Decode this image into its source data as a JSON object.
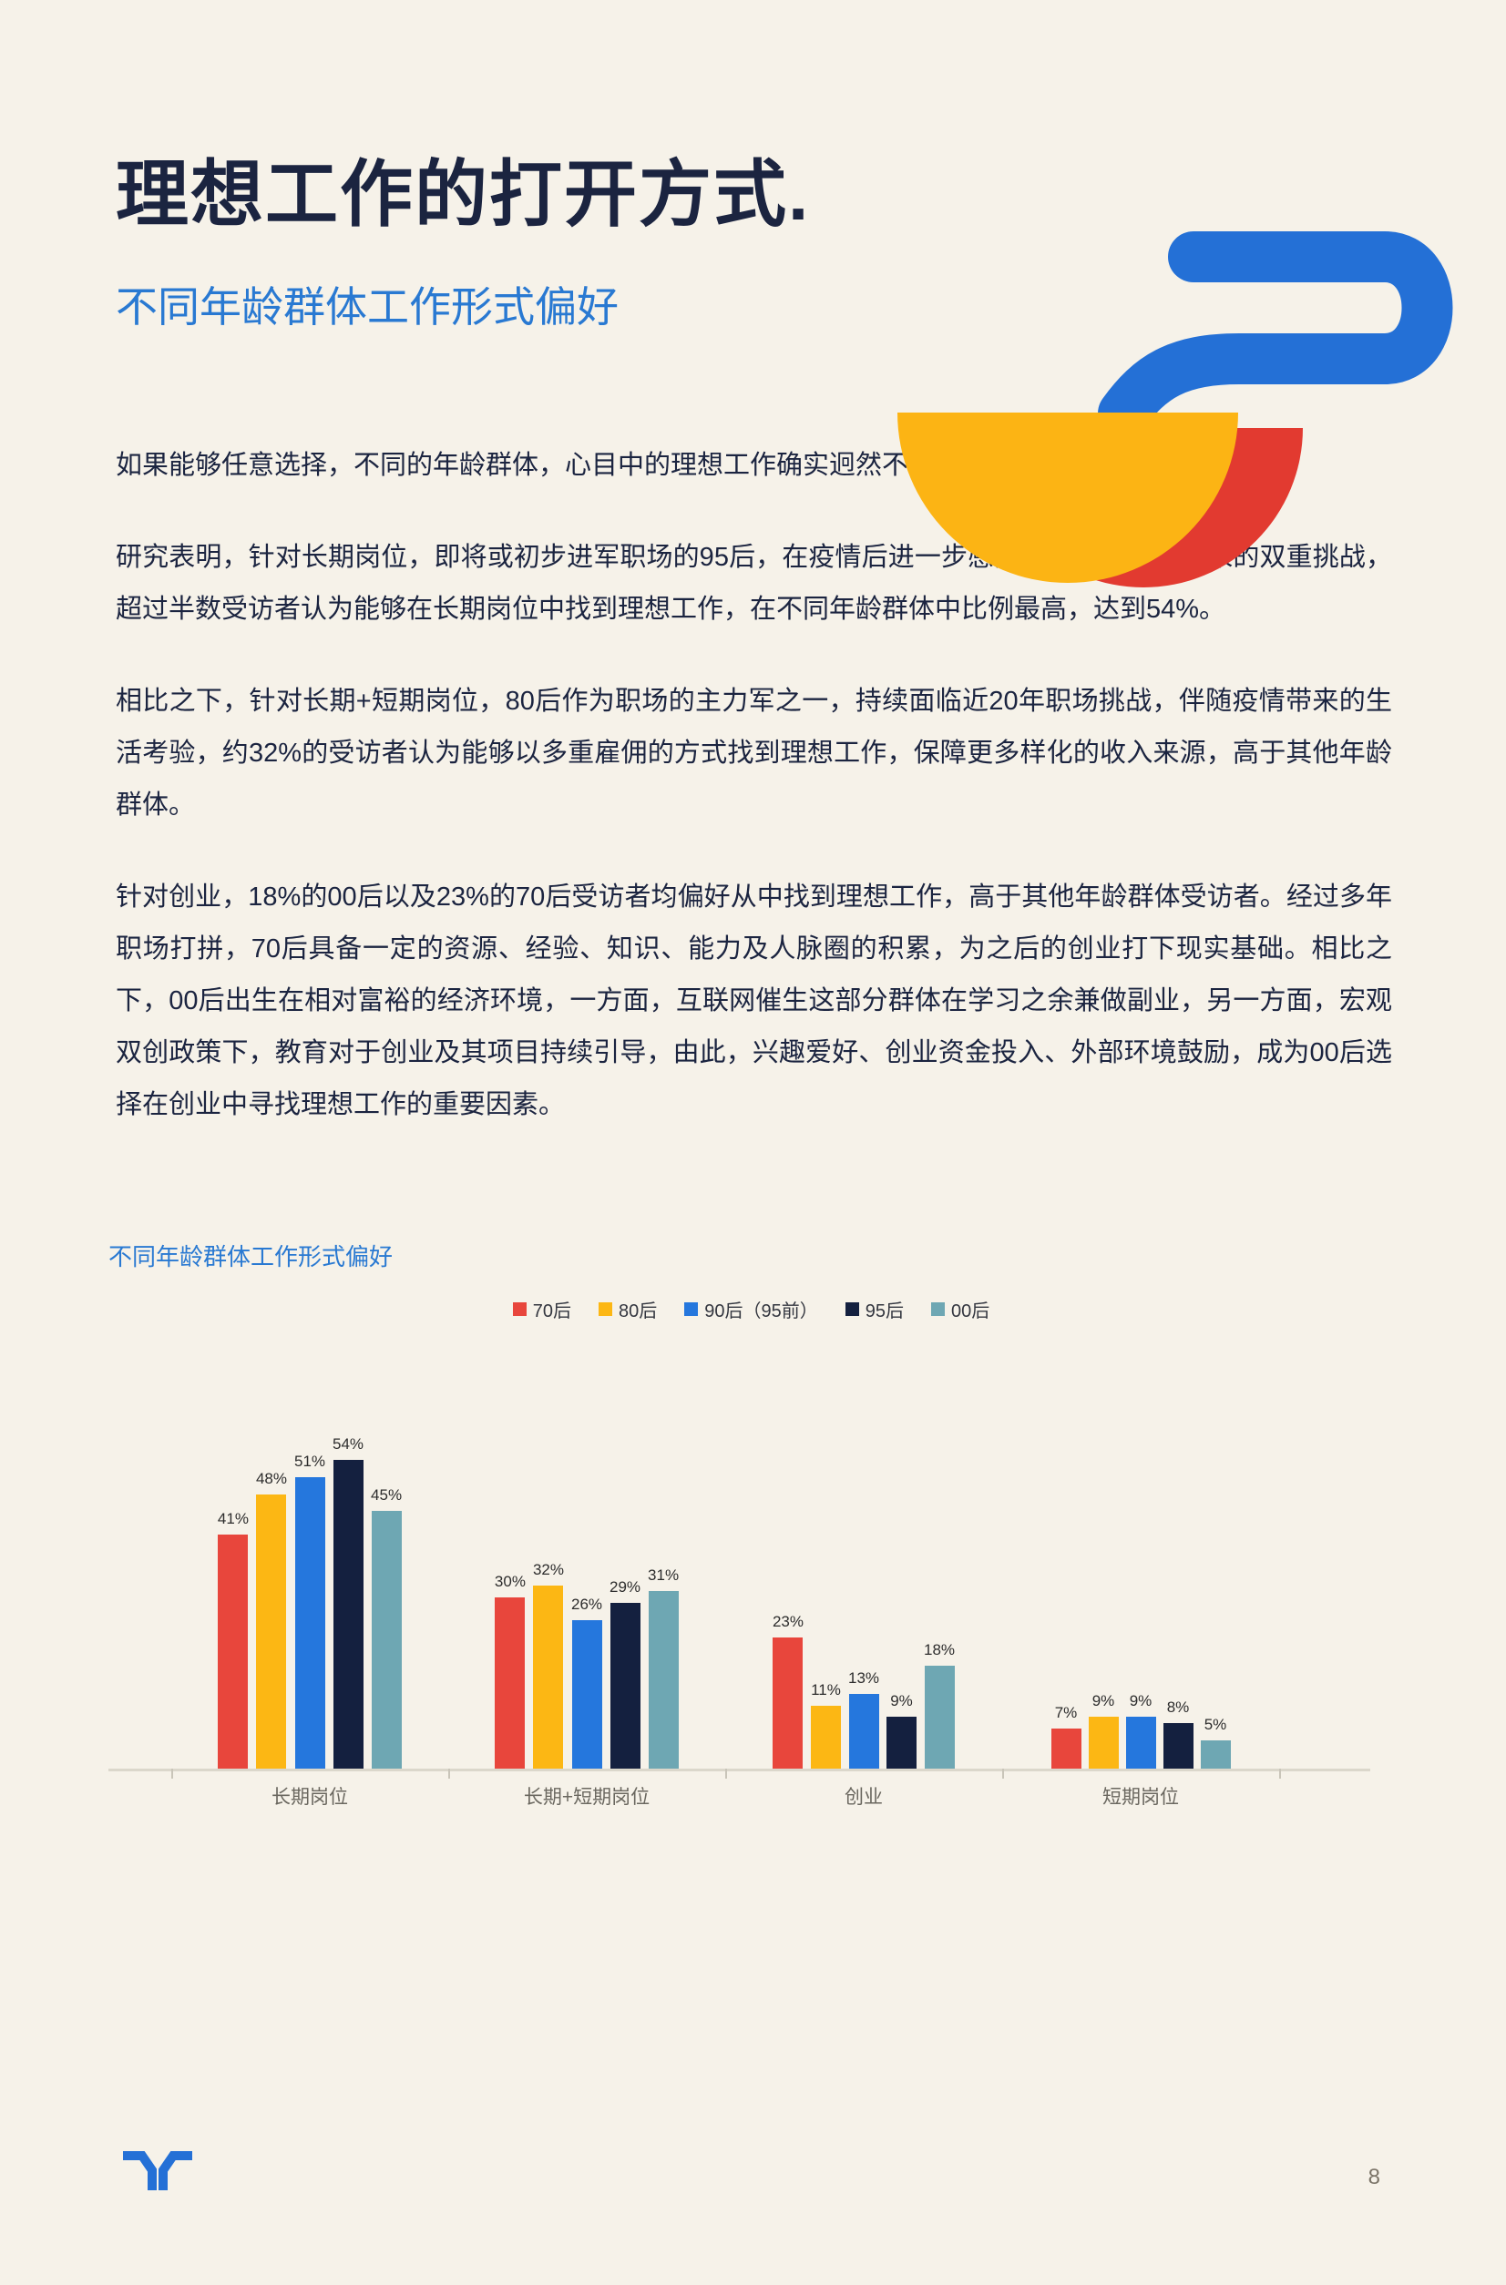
{
  "page": {
    "title": "理想工作的打开方式.",
    "subtitle": "不同年龄群体工作形式偏好",
    "paragraphs": [
      "如果能够任意选择，不同的年龄群体，心目中的理想工作确实迥然不同。",
      "研究表明，针对长期岗位，即将或初步进军职场的95后，在疫情后进一步感受到生活与就业带来的双重挑战，超过半数受访者认为能够在长期岗位中找到理想工作，在不同年龄群体中比例最高，达到54%。",
      "相比之下，针对长期+短期岗位，80后作为职场的主力军之一，持续面临近20年职场挑战，伴随疫情带来的生活考验，约32%的受访者认为能够以多重雇佣的方式找到理想工作，保障更多样化的收入来源，高于其他年龄群体。",
      "针对创业，18%的00后以及23%的70后受访者均偏好从中找到理想工作，高于其他年龄群体受访者。经过多年职场打拼，70后具备一定的资源、经验、知识、能力及人脉圈的积累，为之后的创业打下现实基础。相比之下，00后出生在相对富裕的经济环境，一方面，互联网催生这部分群体在学习之余兼做副业，另一方面，宏观双创政策下，教育对于创业及其项目持续引导，由此，兴趣爱好、创业资金投入、外部环境鼓励，成为00后选择在创业中寻找理想工作的重要因素。"
    ],
    "page_number": "8"
  },
  "colors": {
    "background": "#f6f2e9",
    "ink": "#1b2440",
    "accent_blue": "#2979d2",
    "logo_blue": "#2470d6",
    "decor_yellow": "#fcb414",
    "decor_red": "#e23a30"
  },
  "chart_data": {
    "type": "bar",
    "title": "不同年龄群体工作形式偏好",
    "categories": [
      "长期岗位",
      "长期+短期岗位",
      "创业",
      "短期岗位"
    ],
    "series": [
      {
        "name": "70后",
        "color": "#e8463c",
        "values": [
          41,
          30,
          23,
          7
        ]
      },
      {
        "name": "80后",
        "color": "#fcb714",
        "values": [
          48,
          32,
          11,
          9
        ]
      },
      {
        "name": "90后（95前）",
        "color": "#2577dd",
        "values": [
          51,
          26,
          13,
          9
        ]
      },
      {
        "name": "95后",
        "color": "#14203f",
        "values": [
          54,
          29,
          9,
          8
        ]
      },
      {
        "name": "00后",
        "color": "#6ea7b3",
        "values": [
          45,
          31,
          18,
          5
        ]
      }
    ],
    "value_suffix": "%",
    "ylim": [
      0,
      60
    ],
    "legend_position": "top-center",
    "grid": false
  }
}
